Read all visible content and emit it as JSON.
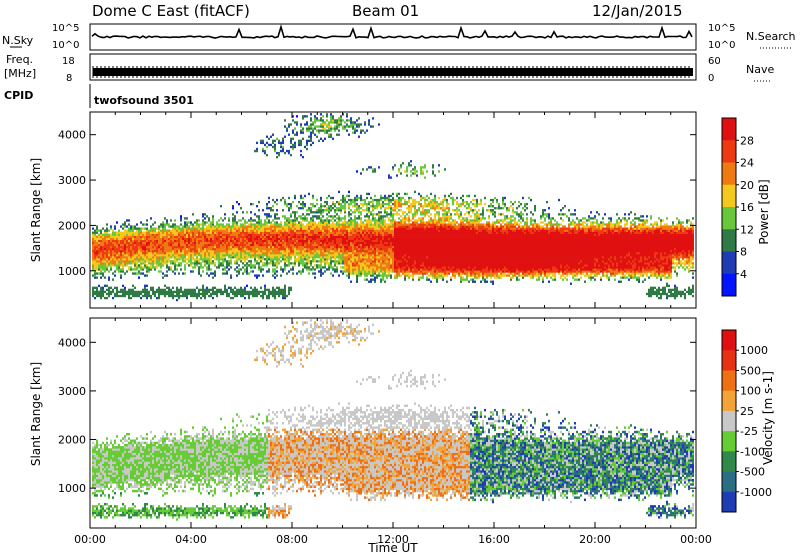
{
  "header": {
    "station": "Dome C East (fitACF)",
    "beam": "Beam 01",
    "date": "12/Jan/2015"
  },
  "chart_data": [
    {
      "type": "line",
      "name": "sky-noise-search-panel",
      "left_labels": [
        "N.Sky"
      ],
      "left_ticks": [
        "10^5",
        "10^0"
      ],
      "right_ticks": [
        "10^5",
        "10^0"
      ],
      "right_label": "N.Search"
    },
    {
      "type": "line",
      "name": "frequency-nave-panel",
      "left_labels": [
        "Freq.",
        "[MHz]"
      ],
      "left_ticks": [
        "18",
        "8"
      ],
      "right_ticks": [
        "60",
        "0"
      ],
      "right_label": "Nave",
      "ylim_left": [
        8,
        18
      ],
      "ylim_right": [
        0,
        60
      ]
    },
    {
      "type": "table",
      "name": "cpid-panel",
      "label": "CPID",
      "text": "twofsound 3501"
    },
    {
      "type": "heatmap",
      "name": "power-panel",
      "ylabel": "Slant Range [km]",
      "xlabel": "",
      "yticks": [
        "1000",
        "2000",
        "3000",
        "4000"
      ],
      "ylim": [
        180,
        4500
      ],
      "colorbar": {
        "label": "Power [dB]",
        "ticks": [
          "4",
          "8",
          "12",
          "16",
          "20",
          "24",
          "28"
        ],
        "colors": [
          "#0014ff",
          "#1e3cb4",
          "#2f7a46",
          "#67c83c",
          "#f4c81c",
          "#f07a12",
          "#ee3a12",
          "#e01010"
        ]
      }
    },
    {
      "type": "heatmap",
      "name": "velocity-panel",
      "ylabel": "Slant Range [km]",
      "xlabel": "Time UT",
      "yticks": [
        "1000",
        "2000",
        "3000",
        "4000"
      ],
      "xticks": [
        "00:00",
        "04:00",
        "08:00",
        "12:00",
        "16:00",
        "20:00",
        "00:00"
      ],
      "ylim": [
        180,
        4500
      ],
      "colorbar": {
        "label": "Velocity [m s-1]",
        "ticks": [
          "1000",
          "500",
          "100",
          "25",
          "-25",
          "-100",
          "-500",
          "-1000"
        ],
        "colors": [
          "#1e3cb4",
          "#2a6e86",
          "#2f8a4a",
          "#66cc33",
          "#c8c8c8",
          "#f2a43a",
          "#ee7012",
          "#e83012",
          "#e01010"
        ]
      }
    }
  ]
}
